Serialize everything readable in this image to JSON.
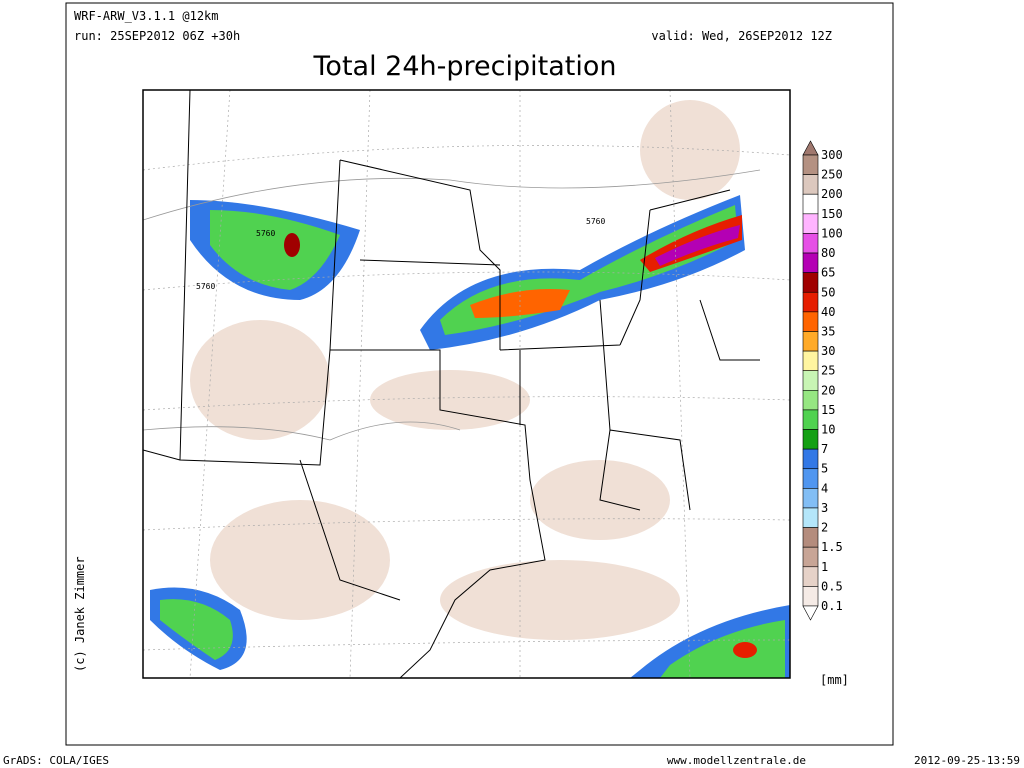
{
  "header": {
    "model": "WRF-ARW_V3.1.1 @12km",
    "run": "run: 25SEP2012 06Z +30h",
    "valid": "valid: Wed, 26SEP2012 12Z",
    "title": "Total 24h-precipitation"
  },
  "map": {
    "contour_labels": [
      "5760",
      "5760",
      "5760"
    ],
    "credit": "(c) Janek Zimmer"
  },
  "legend": {
    "labels": [
      "300",
      "250",
      "200",
      "150",
      "100",
      "80",
      "65",
      "50",
      "40",
      "35",
      "30",
      "25",
      "20",
      "15",
      "10",
      "7",
      "5",
      "4",
      "3",
      "2",
      "1.5",
      "1",
      "0.5",
      "0.1"
    ],
    "colors": [
      "#a0786e",
      "#b49182",
      "#dcc8be",
      "#ffffff",
      "#ffb4ff",
      "#e650e6",
      "#b400b4",
      "#a00000",
      "#e61e00",
      "#ff6400",
      "#ffaa28",
      "#fff5a0",
      "#c8f5b4",
      "#96e682",
      "#50d250",
      "#14a014",
      "#3278e6",
      "#5096f0",
      "#82bef5",
      "#b4e6fa",
      "#b48c7d",
      "#c8a596",
      "#e6d2c8",
      "#f5ebe6",
      "#ffffff"
    ],
    "unit": "[mm]"
  },
  "footer": {
    "left": "GrADS: COLA/IGES",
    "center": "www.modellzentrale.de",
    "right": "2012-09-25-13:59"
  }
}
